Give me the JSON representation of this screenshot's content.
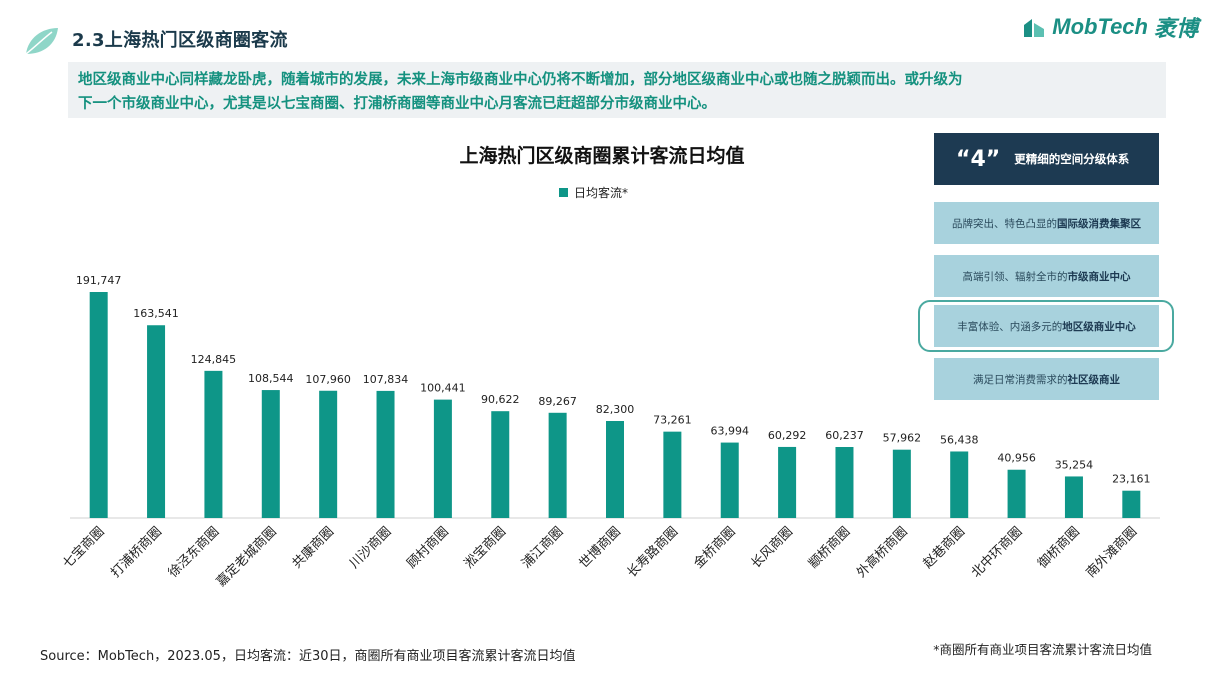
{
  "header": {
    "section_title": "2.3上海热门区级商圈客流",
    "logo_text": "MobTech",
    "logo_cn": "袤博"
  },
  "intro": {
    "line1": "地区级商业中心同样藏龙卧虎，随着城市的发展，未来上海市级商业中心仍将不断增加，部分地区级商业中心或也随之脱颖而出。或升级为",
    "line2": "下一个市级商业中心，尤其是以七宝商圈、打浦桥商圈等商业中心月客流已赶超部分市级商业中心。"
  },
  "chart_data": {
    "type": "bar",
    "title": "上海热门区级商圈累计客流日均值",
    "legend_position": "top-center",
    "categories": [
      "七宝商圈",
      "打浦桥商圈",
      "徐泾东商圈",
      "嘉定老城商圈",
      "共康商圈",
      "川沙商圈",
      "顾村商圈",
      "淞宝商圈",
      "浦江商圈",
      "世博商圈",
      "长寿路商圈",
      "金桥商圈",
      "长风商圈",
      "颛桥商圈",
      "外高桥商圈",
      "赵巷商圈",
      "北中环商圈",
      "御桥商圈",
      "南外滩商圈"
    ],
    "series": [
      {
        "name": "日均客流*",
        "color": "#0e9688",
        "values": [
          191747,
          163541,
          124845,
          108544,
          107960,
          107834,
          100441,
          90622,
          89267,
          82300,
          73261,
          63994,
          60292,
          60237,
          57962,
          56438,
          40956,
          35254,
          23161
        ],
        "labels": [
          "191,747",
          "163,541",
          "124,845",
          "108,544",
          "107,960",
          "107,834",
          "100,441",
          "90,622",
          "89,267",
          "82,300",
          "73,261",
          "63,994",
          "60,292",
          "60,237",
          "57,962",
          "56,438",
          "40,956",
          "35,254",
          "23,161"
        ]
      }
    ],
    "ylim": [
      0,
      191747
    ],
    "grid": false
  },
  "side_panel": {
    "head_number": "“4”",
    "head_text": "更精细的空间分级体系",
    "tiers": [
      {
        "pre": "品牌突出、特色凸显的",
        "bold": "国际级消费集聚区"
      },
      {
        "pre": "高端引领、辐射全市的",
        "bold": "市级商业中心"
      },
      {
        "pre": "丰富体验、内涵多元的",
        "bold": "地区级商业中心"
      },
      {
        "pre": "满足日常消费需求的",
        "bold": "社区级商业"
      }
    ]
  },
  "footer": {
    "source": "Source：MobTech，2023.05，日均客流：近30日，商圈所有商业项目客流累计客流日均值",
    "note": "*商圈所有商业项目客流累计客流日均值"
  },
  "colors": {
    "bar": "#0e9688",
    "title": "#1b3a4b",
    "accent": "#14917f",
    "panel_dark": "#1d3a52",
    "panel_light": "#a8d2dd"
  }
}
